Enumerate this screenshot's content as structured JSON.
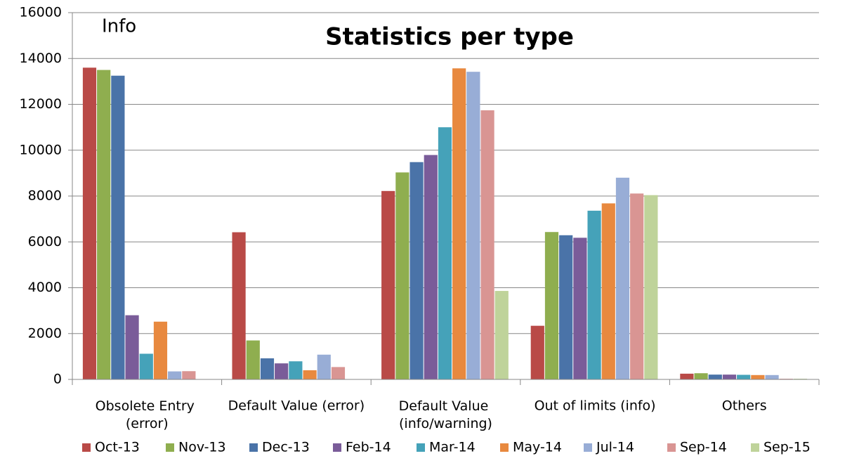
{
  "chart_data": {
    "type": "bar",
    "title": "Statistics per type",
    "annotation": "Info",
    "categories": [
      "Obsolete Entry (error)",
      "Default Value (error)",
      "Default Value (info/warning)",
      "Out of limits (info)",
      "Others"
    ],
    "series": [
      {
        "name": "Oct-13",
        "color": "#B94A47",
        "values": [
          13600,
          6420,
          8220,
          2340,
          250
        ]
      },
      {
        "name": "Nov-13",
        "color": "#8FAE4F",
        "values": [
          13500,
          1700,
          9030,
          6430,
          270
        ]
      },
      {
        "name": "Dec-13",
        "color": "#4A73A8",
        "values": [
          13250,
          920,
          9480,
          6290,
          210
        ]
      },
      {
        "name": "Feb-14",
        "color": "#7A5C99",
        "values": [
          2800,
          700,
          9790,
          6180,
          210
        ]
      },
      {
        "name": "Mar-14",
        "color": "#45A2B9",
        "values": [
          1120,
          790,
          11000,
          7360,
          200
        ]
      },
      {
        "name": "May-14",
        "color": "#E8893F",
        "values": [
          2520,
          400,
          13570,
          7680,
          190
        ]
      },
      {
        "name": "Jul-14",
        "color": "#98ADD6",
        "values": [
          350,
          1080,
          13420,
          8800,
          190
        ]
      },
      {
        "name": "Sep-14",
        "color": "#D99593",
        "values": [
          360,
          540,
          11740,
          8110,
          30
        ]
      },
      {
        "name": "Sep-15",
        "color": "#BFD39A",
        "values": [
          0,
          0,
          3860,
          8040,
          30
        ]
      }
    ],
    "ylim": [
      0,
      16000
    ],
    "yticks": [
      0,
      2000,
      4000,
      6000,
      8000,
      10000,
      12000,
      14000,
      16000
    ],
    "grid": true,
    "legend": "bottom"
  }
}
